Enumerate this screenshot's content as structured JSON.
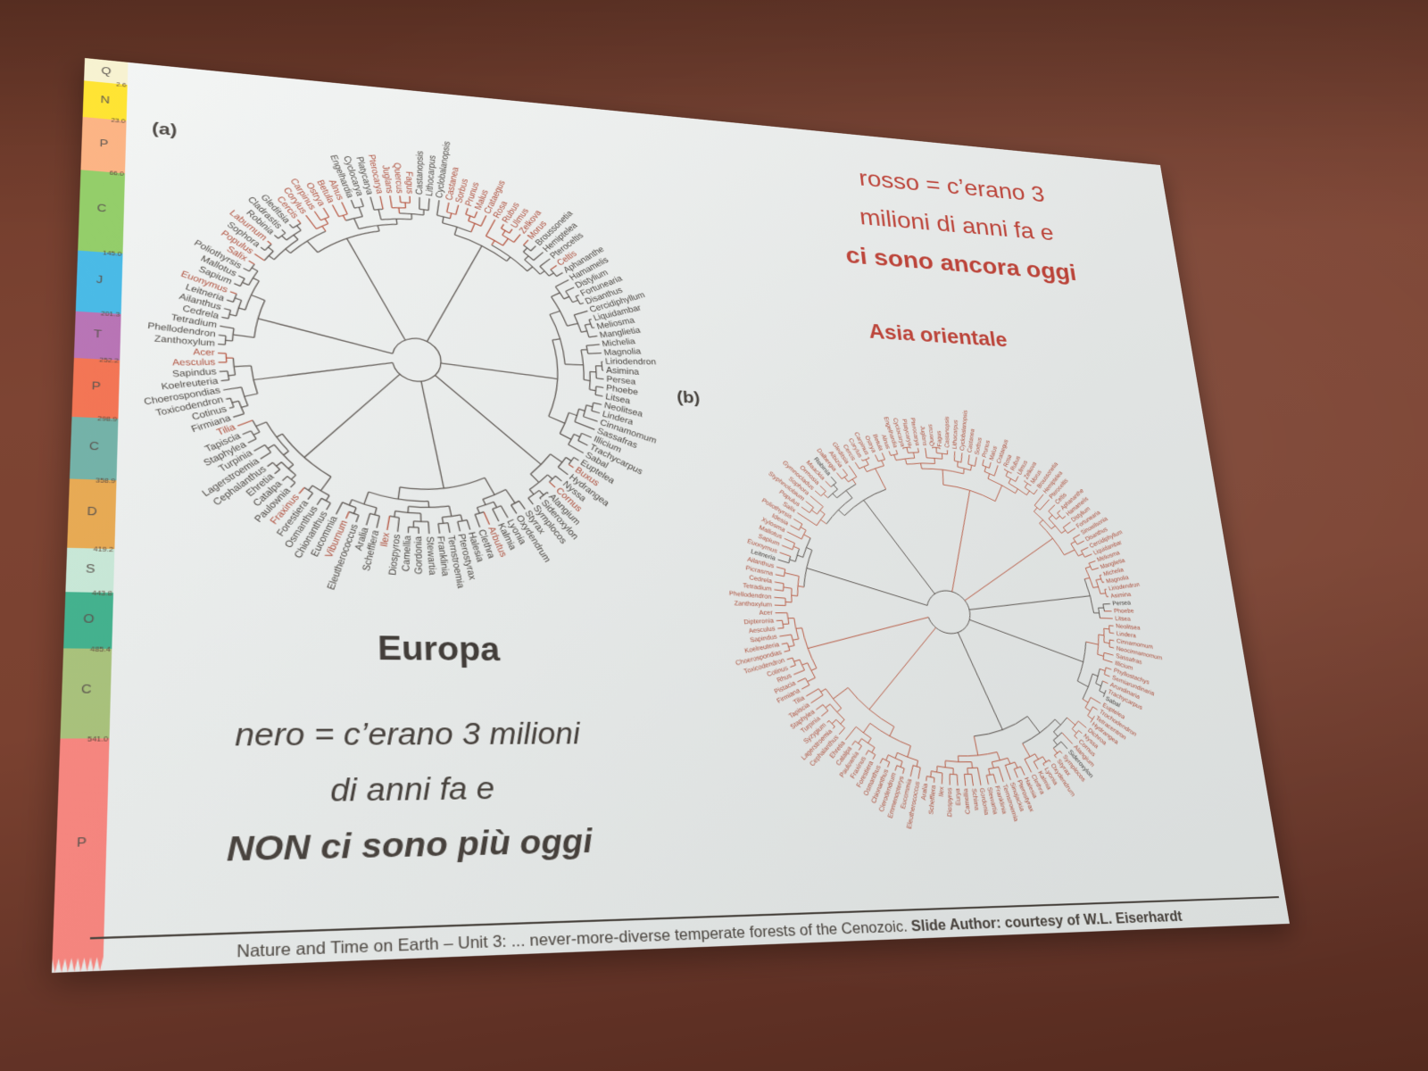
{
  "photo": {
    "wall_color": "#7a4130",
    "slide_color": "#ebeeed"
  },
  "slide": {
    "marker_a": "(a)",
    "marker_b": "(b)",
    "red_legend": {
      "color": "#c2453a",
      "lines": [
        "rosso = c’erano 3",
        "milioni di anni fa e",
        "ci sono ancora oggi"
      ]
    },
    "black_legend": {
      "color": "#453f3a",
      "lines": [
        "nero = c’erano 3 milioni",
        "di anni fa e",
        "NON ci sono più oggi"
      ]
    },
    "tree_a_title": "Europa",
    "tree_b_title": "Asia orientale",
    "caption": {
      "normal": "Nature and Time on Earth – Unit 3: ... never-more-diverse temperate forests of the Cenozoic. ",
      "bold": "Slide Author: courtesy of W.L. Eiserhardt"
    }
  },
  "timescale": {
    "description": "geological period column, top=youngest; age = boundary age in Ma shown at top of segment",
    "segments": [
      {
        "letter": "Q",
        "age": null,
        "color": "#f7f2cf",
        "h": 2.9
      },
      {
        "letter": "N",
        "age": "2.6",
        "color": "#ffe329",
        "h": 4.6
      },
      {
        "letter": "P",
        "age": "23.0",
        "color": "#fcb17f",
        "h": 6.6
      },
      {
        "letter": "C",
        "age": "66.0",
        "color": "#8fcc63",
        "h": 9.8
      },
      {
        "letter": "J",
        "age": "145.0",
        "color": "#42b8e6",
        "h": 7.2
      },
      {
        "letter": "T",
        "age": "201.3",
        "color": "#b66fb3",
        "h": 5.4
      },
      {
        "letter": "P",
        "age": "252.2",
        "color": "#f4704e",
        "h": 6.7
      },
      {
        "letter": "C",
        "age": "298.9",
        "color": "#6fb0a6",
        "h": 6.9
      },
      {
        "letter": "D",
        "age": "358.9",
        "color": "#e8a84e",
        "h": 7.5
      },
      {
        "letter": "S",
        "age": "419.2",
        "color": "#c7e8d7",
        "h": 4.7
      },
      {
        "letter": "O",
        "age": "443.8",
        "color": "#3db08b",
        "h": 5.9
      },
      {
        "letter": "C",
        "age": "485.4",
        "color": "#a7c178",
        "h": 9.2
      },
      {
        "letter": "P",
        "age": "541.0",
        "color": "#f8837c",
        "h": 22.6
      }
    ]
  },
  "trees": {
    "leaf_format": "[genus, is_red] — red(1)=c’erano 3 Ma fa e ci sono ancora oggi; nero(0)=NON ci sono più oggi",
    "europa": {
      "leaves": [
        [
          "Zanthoxylum",
          0
        ],
        [
          "Phellodendron",
          0
        ],
        [
          "Tetradium",
          0
        ],
        [
          "Cedrela",
          0
        ],
        [
          "Ailanthus",
          0
        ],
        [
          "Leitneria",
          0
        ],
        [
          "Euonymus",
          1
        ],
        [
          "Sapium",
          0
        ],
        [
          "Mallotus",
          0
        ],
        [
          "Poliothyrsis",
          0
        ],
        [
          "Salix",
          1
        ],
        [
          "Populus",
          1
        ],
        [
          "Sophora",
          0
        ],
        [
          "Laburnum",
          1
        ],
        [
          "Robinia",
          0
        ],
        [
          "Cladrastis",
          0
        ],
        [
          "Gleditsia",
          0
        ],
        [
          "Cercis",
          1
        ],
        [
          "Corylus",
          1
        ],
        [
          "Carpinus",
          1
        ],
        [
          "Ostrya",
          1
        ],
        [
          "Betula",
          1
        ],
        [
          "Alnus",
          1
        ],
        [
          "Engelhardia",
          0
        ],
        [
          "Cyclocarya",
          0
        ],
        [
          "Platycarya",
          0
        ],
        [
          "Pterocarya",
          1
        ],
        [
          "Juglans",
          1
        ],
        [
          "Quercus",
          1
        ],
        [
          "Fagus",
          1
        ],
        [
          "Castanopsis",
          0
        ],
        [
          "Lithocarpus",
          0
        ],
        [
          "Cyclobalanopsis",
          0
        ],
        [
          "Castanea",
          1
        ],
        [
          "Sorbus",
          1
        ],
        [
          "Prunus",
          1
        ],
        [
          "Malus",
          1
        ],
        [
          "Crataegus",
          1
        ],
        [
          "Rosa",
          1
        ],
        [
          "Rubus",
          1
        ],
        [
          "Ulmus",
          1
        ],
        [
          "Zelkova",
          1
        ],
        [
          "Morus",
          1
        ],
        [
          "Broussonetia",
          0
        ],
        [
          "Hemiptelea",
          0
        ],
        [
          "Pteroceltis",
          0
        ],
        [
          "Celtis",
          1
        ],
        [
          "Aphananthe",
          0
        ],
        [
          "Hamamelis",
          0
        ],
        [
          "Distylium",
          0
        ],
        [
          "Fortunearia",
          0
        ],
        [
          "Disanthus",
          0
        ],
        [
          "Cercidiphyllum",
          0
        ],
        [
          "Liquidambar",
          0
        ],
        [
          "Meliosma",
          0
        ],
        [
          "Manglietia",
          0
        ],
        [
          "Michelia",
          0
        ],
        [
          "Magnolia",
          0
        ],
        [
          "Liriodendron",
          0
        ],
        [
          "Asimina",
          0
        ],
        [
          "Persea",
          0
        ],
        [
          "Phoebe",
          0
        ],
        [
          "Litsea",
          0
        ],
        [
          "Neolitsea",
          0
        ],
        [
          "Lindera",
          0
        ],
        [
          "Cinnamomum",
          0
        ],
        [
          "Sassafras",
          0
        ],
        [
          "Illicium",
          0
        ],
        [
          "Trachycarpus",
          0
        ],
        [
          "Sabal",
          0
        ],
        [
          "Euptelea",
          0
        ],
        [
          "Buxus",
          1
        ],
        [
          "Hydrangea",
          0
        ],
        [
          "Nyssa",
          0
        ],
        [
          "Cornus",
          1
        ],
        [
          "Alangium",
          0
        ],
        [
          "Sideroxylon",
          0
        ],
        [
          "Symplocos",
          0
        ],
        [
          "Styrax",
          0
        ],
        [
          "Oxydendrum",
          0
        ],
        [
          "Lyonia",
          0
        ],
        [
          "Kalmia",
          0
        ],
        [
          "Arbutus",
          1
        ],
        [
          "Clethra",
          0
        ],
        [
          "Halesia",
          0
        ],
        [
          "Pterostyrax",
          0
        ],
        [
          "Ternstroemia",
          0
        ],
        [
          "Franklinia",
          0
        ],
        [
          "Stewartia",
          0
        ],
        [
          "Gordonia",
          0
        ],
        [
          "Camellia",
          0
        ],
        [
          "Diospyros",
          0
        ],
        [
          "Ilex",
          1
        ],
        [
          "Schefflera",
          0
        ],
        [
          "Aralia",
          0
        ],
        [
          "Eleutherococcus",
          0
        ],
        [
          "Viburnum",
          1
        ],
        [
          "Eucommia",
          0
        ],
        [
          "Chionanthus",
          0
        ],
        [
          "Osmanthus",
          0
        ],
        [
          "Forestiera",
          0
        ],
        [
          "Fraxinus",
          1
        ],
        [
          "Paulownia",
          0
        ],
        [
          "Catalpa",
          0
        ],
        [
          "Ehretia",
          0
        ],
        [
          "Cephalanthus",
          0
        ],
        [
          "Lagerstroemia",
          0
        ],
        [
          "Turpinia",
          0
        ],
        [
          "Staphylea",
          0
        ],
        [
          "Tapiscia",
          0
        ],
        [
          "Tilia",
          1
        ],
        [
          "Firmiana",
          0
        ],
        [
          "Cotinus",
          0
        ],
        [
          "Toxicodendron",
          0
        ],
        [
          "Choerospondias",
          0
        ],
        [
          "Koelreuteria",
          0
        ],
        [
          "Sapindus",
          0
        ],
        [
          "Aesculus",
          1
        ],
        [
          "Acer",
          1
        ]
      ]
    },
    "asia_orientale": {
      "leaves": [
        [
          "Zanthoxylum",
          1
        ],
        [
          "Phellodendron",
          1
        ],
        [
          "Tetradium",
          1
        ],
        [
          "Cedrela",
          1
        ],
        [
          "Picrasma",
          1
        ],
        [
          "Ailanthus",
          1
        ],
        [
          "Leitneria",
          0
        ],
        [
          "Euonymus",
          1
        ],
        [
          "Sapium",
          1
        ],
        [
          "Mallotus",
          1
        ],
        [
          "Xylosma",
          1
        ],
        [
          "Idesia",
          1
        ],
        [
          "Poliothyrsis",
          1
        ],
        [
          "Salix",
          1
        ],
        [
          "Populus",
          1
        ],
        [
          "Styphnolobium",
          1
        ],
        [
          "Sophora",
          1
        ],
        [
          "Gymnocladus",
          1
        ],
        [
          "Ormosia",
          1
        ],
        [
          "Maackia",
          1
        ],
        [
          "Robinia",
          0
        ],
        [
          "Dalbergia",
          1
        ],
        [
          "Albizia",
          1
        ],
        [
          "Gleditsia",
          1
        ],
        [
          "Cercis",
          1
        ],
        [
          "Corylus",
          1
        ],
        [
          "Carpinus",
          1
        ],
        [
          "Ostrya",
          1
        ],
        [
          "Betula",
          1
        ],
        [
          "Alnus",
          1
        ],
        [
          "Engelhardia",
          1
        ],
        [
          "Cyclocarya",
          1
        ],
        [
          "Platycarya",
          1
        ],
        [
          "Pterocarya",
          1
        ],
        [
          "Juglans",
          1
        ],
        [
          "Quercus",
          1
        ],
        [
          "Fagus",
          1
        ],
        [
          "Castanopsis",
          1
        ],
        [
          "Lithocarpus",
          1
        ],
        [
          "Cyclobalanopsis",
          1
        ],
        [
          "Castanea",
          1
        ],
        [
          "Sorbus",
          1
        ],
        [
          "Prunus",
          1
        ],
        [
          "Malus",
          1
        ],
        [
          "Crataegus",
          1
        ],
        [
          "Rosa",
          1
        ],
        [
          "Rubus",
          1
        ],
        [
          "Ulmus",
          1
        ],
        [
          "Zelkova",
          1
        ],
        [
          "Morus",
          1
        ],
        [
          "Broussonetia",
          1
        ],
        [
          "Hemiptelea",
          1
        ],
        [
          "Pteroceltis",
          1
        ],
        [
          "Celtis",
          1
        ],
        [
          "Aphananthe",
          1
        ],
        [
          "Hamamelis",
          1
        ],
        [
          "Distylium",
          1
        ],
        [
          "Fortunearia",
          1
        ],
        [
          "Sinowilsonia",
          1
        ],
        [
          "Disanthus",
          1
        ],
        [
          "Cercidiphyllum",
          1
        ],
        [
          "Liquidambar",
          1
        ],
        [
          "Meliosma",
          1
        ],
        [
          "Manglietia",
          1
        ],
        [
          "Michelia",
          1
        ],
        [
          "Magnolia",
          1
        ],
        [
          "Liriodendron",
          1
        ],
        [
          "Asimina",
          1
        ],
        [
          "Persea",
          0
        ],
        [
          "Phoebe",
          1
        ],
        [
          "Litsea",
          1
        ],
        [
          "Neolitsea",
          1
        ],
        [
          "Lindera",
          1
        ],
        [
          "Cinnamomum",
          1
        ],
        [
          "Neocinnamomum",
          1
        ],
        [
          "Sassafras",
          1
        ],
        [
          "Illicium",
          1
        ],
        [
          "Phyllostachys",
          1
        ],
        [
          "Semiarundinaria",
          1
        ],
        [
          "Arundinaria",
          1
        ],
        [
          "Trachycarpus",
          1
        ],
        [
          "Sabal",
          0
        ],
        [
          "Euptelea",
          1
        ],
        [
          "Trochodendron",
          1
        ],
        [
          "Tetracentron",
          1
        ],
        [
          "Hydrangea",
          1
        ],
        [
          "Dichroa",
          1
        ],
        [
          "Nyssa",
          1
        ],
        [
          "Cornus",
          1
        ],
        [
          "Alangium",
          1
        ],
        [
          "Sideroxylon",
          0
        ],
        [
          "Symplocos",
          1
        ],
        [
          "Styrax",
          1
        ],
        [
          "Oxydendrum",
          1
        ],
        [
          "Lyonia",
          1
        ],
        [
          "Kalmia",
          1
        ],
        [
          "Clethra",
          1
        ],
        [
          "Halesia",
          1
        ],
        [
          "Pterostyrax",
          1
        ],
        [
          "Sinojackia",
          1
        ],
        [
          "Ternstroemia",
          1
        ],
        [
          "Franklinia",
          1
        ],
        [
          "Stewartia",
          1
        ],
        [
          "Gordonia",
          1
        ],
        [
          "Schima",
          1
        ],
        [
          "Camellia",
          1
        ],
        [
          "Eurya",
          1
        ],
        [
          "Diospyros",
          1
        ],
        [
          "Ilex",
          1
        ],
        [
          "Schefflera",
          1
        ],
        [
          "Aralia",
          1
        ],
        [
          "Eleutherococcus",
          1
        ],
        [
          "Eucommia",
          1
        ],
        [
          "Emmenopterys",
          1
        ],
        [
          "Clerodendrum",
          1
        ],
        [
          "Chionanthus",
          1
        ],
        [
          "Osmanthus",
          1
        ],
        [
          "Forestiera",
          1
        ],
        [
          "Fraxinus",
          1
        ],
        [
          "Paulownia",
          1
        ],
        [
          "Catalpa",
          1
        ],
        [
          "Ehretia",
          1
        ],
        [
          "Cephalanthus",
          1
        ],
        [
          "Lagerstroemia",
          1
        ],
        [
          "Syzygium",
          1
        ],
        [
          "Turpinia",
          1
        ],
        [
          "Staphylea",
          1
        ],
        [
          "Tapiscia",
          1
        ],
        [
          "Tilia",
          1
        ],
        [
          "Firmiana",
          1
        ],
        [
          "Pistacia",
          1
        ],
        [
          "Rhus",
          1
        ],
        [
          "Cotinus",
          1
        ],
        [
          "Toxicodendron",
          1
        ],
        [
          "Choerospondias",
          1
        ],
        [
          "Koelreuteria",
          1
        ],
        [
          "Sapindus",
          1
        ],
        [
          "Aesculus",
          1
        ],
        [
          "Dipteronia",
          1
        ],
        [
          "Acer",
          1
        ]
      ]
    }
  }
}
